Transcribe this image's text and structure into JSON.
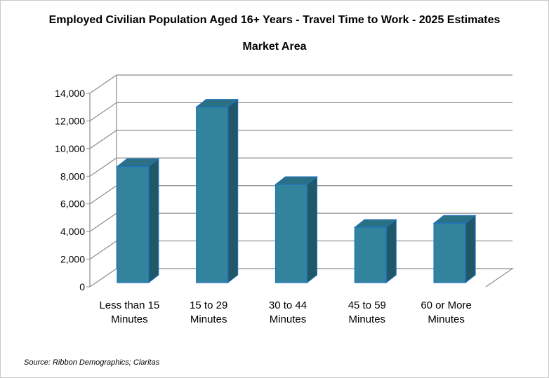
{
  "chart_data": {
    "type": "bar",
    "title": "Employed Civilian Population Aged 16+ Years - Travel Time to Work - 2025 Estimates",
    "subtitle": "Market Area",
    "categories": [
      [
        "Less than 15",
        "Minutes"
      ],
      [
        "15 to 29",
        "Minutes"
      ],
      [
        "30 to 44",
        "Minutes"
      ],
      [
        "45 to 59",
        "Minutes"
      ],
      [
        "60 or More",
        "Minutes"
      ]
    ],
    "values": [
      8400,
      12700,
      7100,
      4000,
      4300
    ],
    "ylim": [
      0,
      14000
    ],
    "yticks": [
      "0",
      "2,000",
      "4,000",
      "6,000",
      "8,000",
      "10,000",
      "12,000",
      "14,000"
    ],
    "grid": true,
    "style": "3d-column",
    "colors": {
      "bar_front": "#31849b",
      "bar_top": "#2a7186",
      "bar_side": "#215868",
      "bar_edge": "#1f6fc4",
      "grid": "#8c8c8c"
    }
  },
  "source": "Source: Ribbon Demographics; Claritas"
}
